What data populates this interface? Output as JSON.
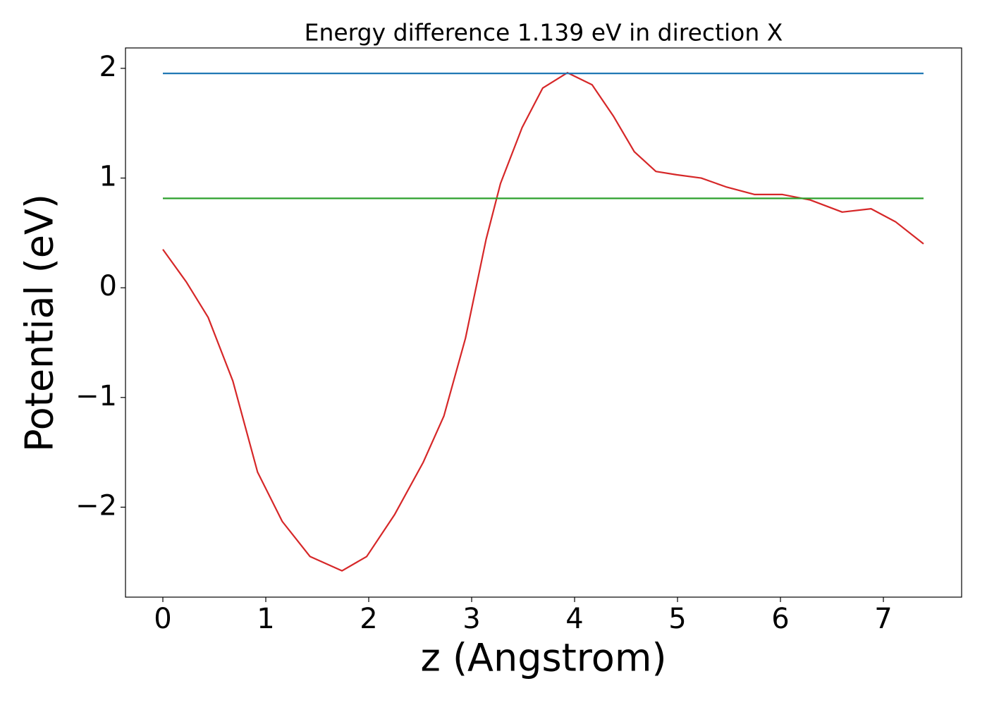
{
  "chart_data": {
    "type": "line",
    "title": "Energy difference 1.139 eV in direction X",
    "x_label": "z (Angstrom)",
    "y_label": "Potential (eV)",
    "series": [
      {
        "color": "#d62728",
        "x": [
          0,
          0.23,
          0.44,
          0.68,
          0.92,
          1.16,
          1.43,
          1.74,
          1.98,
          2.25,
          2.53,
          2.73,
          2.94,
          3.14,
          3.28,
          3.49,
          3.69,
          3.93,
          4.17,
          4.38,
          4.58,
          4.79,
          4.99,
          5.23,
          5.47,
          5.75,
          6.02,
          6.29,
          6.6,
          6.88,
          7.12,
          7.39
        ],
        "values": [
          0.35,
          0.05,
          -0.27,
          -0.85,
          -1.68,
          -2.13,
          -2.45,
          -2.58,
          -2.45,
          -2.07,
          -1.59,
          -1.17,
          -0.46,
          0.44,
          0.95,
          1.46,
          1.82,
          1.96,
          1.85,
          1.56,
          1.24,
          1.06,
          1.03,
          1.0,
          0.92,
          0.85,
          0.85,
          0.8,
          0.69,
          0.72,
          0.6,
          0.4
        ]
      },
      {
        "color": "#1f77b4",
        "x": [
          0,
          7.39
        ],
        "values": [
          1.954,
          1.954
        ]
      },
      {
        "color": "#2ca02c",
        "x": [
          0,
          7.39
        ],
        "values": [
          0.815,
          0.815
        ]
      }
    ],
    "xlim": [
      -0.363,
      7.76
    ],
    "ylim": [
      -2.82,
      2.186
    ],
    "xticks": [
      0,
      1,
      2,
      3,
      4,
      5,
      6,
      7
    ],
    "yticks": [
      {
        "value": -2,
        "label": "−2"
      },
      {
        "value": -1,
        "label": "−1"
      },
      0,
      1,
      2
    ],
    "grid": false
  }
}
